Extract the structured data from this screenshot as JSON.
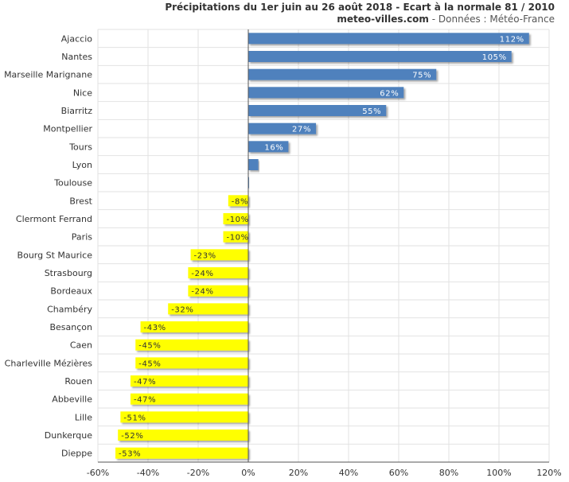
{
  "header": {
    "title": "Précipitations du 1er juin au 26 août 2018 - Ecart à la normale 81 / 2010",
    "site": "meteo-villes.com",
    "source": " - Données : Météo-France"
  },
  "colors": {
    "positive": "#4f81bd",
    "negative": "#ffff00",
    "grid": "#e2e2e2",
    "axis": "#555555"
  },
  "chart_data": {
    "type": "bar",
    "orientation": "horizontal",
    "title": "Précipitations du 1er juin au 26 août 2018 - Ecart à la normale 81 / 2010",
    "xlabel": "",
    "ylabel": "",
    "xlim": [
      -60,
      120
    ],
    "x_ticks": [
      -60,
      -40,
      -20,
      0,
      20,
      40,
      60,
      80,
      100,
      120
    ],
    "x_tick_labels": [
      "-60%",
      "-40%",
      "-20%",
      "0%",
      "20%",
      "40%",
      "60%",
      "80%",
      "100%",
      "120%"
    ],
    "grid": true,
    "categories": [
      "Ajaccio",
      "Nantes",
      "Marseille Marignane",
      "Nice",
      "Biarritz",
      "Montpellier",
      "Tours",
      "Lyon",
      "Toulouse",
      "Brest",
      "Clermont Ferrand",
      "Paris",
      "Bourg St Maurice",
      "Strasbourg",
      "Bordeaux",
      "Chambéry",
      "Besançon",
      "Caen",
      "Charleville Mézières",
      "Rouen",
      "Abbeville",
      "Lille",
      "Dunkerque",
      "Dieppe"
    ],
    "values": [
      112,
      105,
      75,
      62,
      55,
      27,
      16,
      4,
      0,
      -8,
      -10,
      -10,
      -23,
      -24,
      -24,
      -32,
      -43,
      -45,
      -45,
      -47,
      -47,
      -51,
      -52,
      -53
    ],
    "data_labels": [
      "112%",
      "105%",
      "75%",
      "62%",
      "55%",
      "27%",
      "16%",
      "",
      "",
      "-8%",
      "-10%",
      "-10%",
      "-23%",
      "-24%",
      "-24%",
      "-32%",
      "-43%",
      "-45%",
      "-45%",
      "-47%",
      "-47%",
      "-51%",
      "-52%",
      "-53%"
    ]
  }
}
